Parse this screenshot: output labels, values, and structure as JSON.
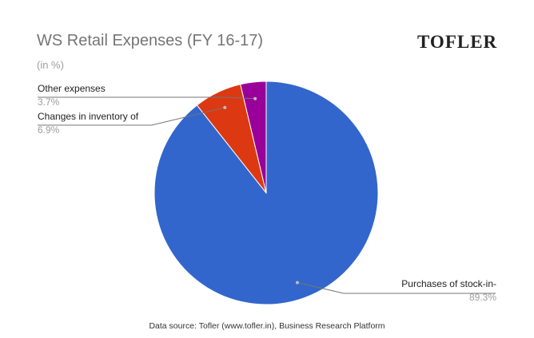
{
  "chart_data": {
    "type": "pie",
    "title": "WS Retail Expenses (FY 16-17)",
    "subtitle": "(in %)",
    "slices": [
      {
        "label": "Purchases of stock-in-",
        "value": 89.3,
        "value_label": "89.3%",
        "color": "#3366cc"
      },
      {
        "label": "Changes in inventory of",
        "value": 6.9,
        "value_label": "6.9%",
        "color": "#dc3912"
      },
      {
        "label": "Other expenses",
        "value": 3.7,
        "value_label": "3.7%",
        "color": "#990099"
      }
    ],
    "legend": "none",
    "label_style": "leader-lines"
  },
  "branding": {
    "logo_text": "TOFLER"
  },
  "footer": {
    "source": "Data source: Tofler (www.tofler.in), Business Research Platform"
  }
}
